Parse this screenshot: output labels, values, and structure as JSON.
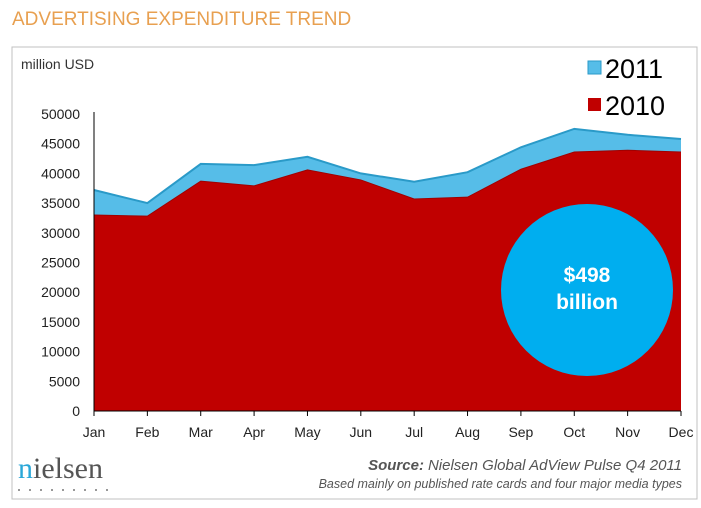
{
  "title": "ADVERTISING EXPENDITURE TREND",
  "footer": {
    "logo_text": "nielsen",
    "source_label": "Source:",
    "source_text": "Nielsen Global AdView Pulse Q4 2011",
    "note": "Based mainly on published rate cards and four major media types"
  },
  "colors": {
    "title": "#E8A050",
    "series_2011": "#56BDE8",
    "series_2011_line": "#2A9AC8",
    "series_2010": "#C00000",
    "circle": "#00AEEF"
  },
  "chart_data": {
    "type": "area",
    "ylabel": "million USD",
    "ylim": [
      0,
      50000
    ],
    "yticks": [
      0,
      5000,
      10000,
      15000,
      20000,
      25000,
      30000,
      35000,
      40000,
      45000,
      50000
    ],
    "categories": [
      "Jan",
      "Feb",
      "Mar",
      "Apr",
      "May",
      "Jun",
      "Jul",
      "Aug",
      "Sep",
      "Oct",
      "Nov",
      "Dec"
    ],
    "series": [
      {
        "name": "2011",
        "values": [
          37200,
          35000,
          41600,
          41400,
          42800,
          40000,
          38600,
          40200,
          44400,
          47500,
          46500,
          45800
        ]
      },
      {
        "name": "2010",
        "values": [
          33000,
          32800,
          38700,
          37900,
          40600,
          38900,
          35700,
          36000,
          40700,
          43600,
          43900,
          43600
        ]
      }
    ],
    "legend_position": "top-right",
    "grid": false,
    "annotation": {
      "line1": "$498",
      "line2": "billion"
    }
  }
}
